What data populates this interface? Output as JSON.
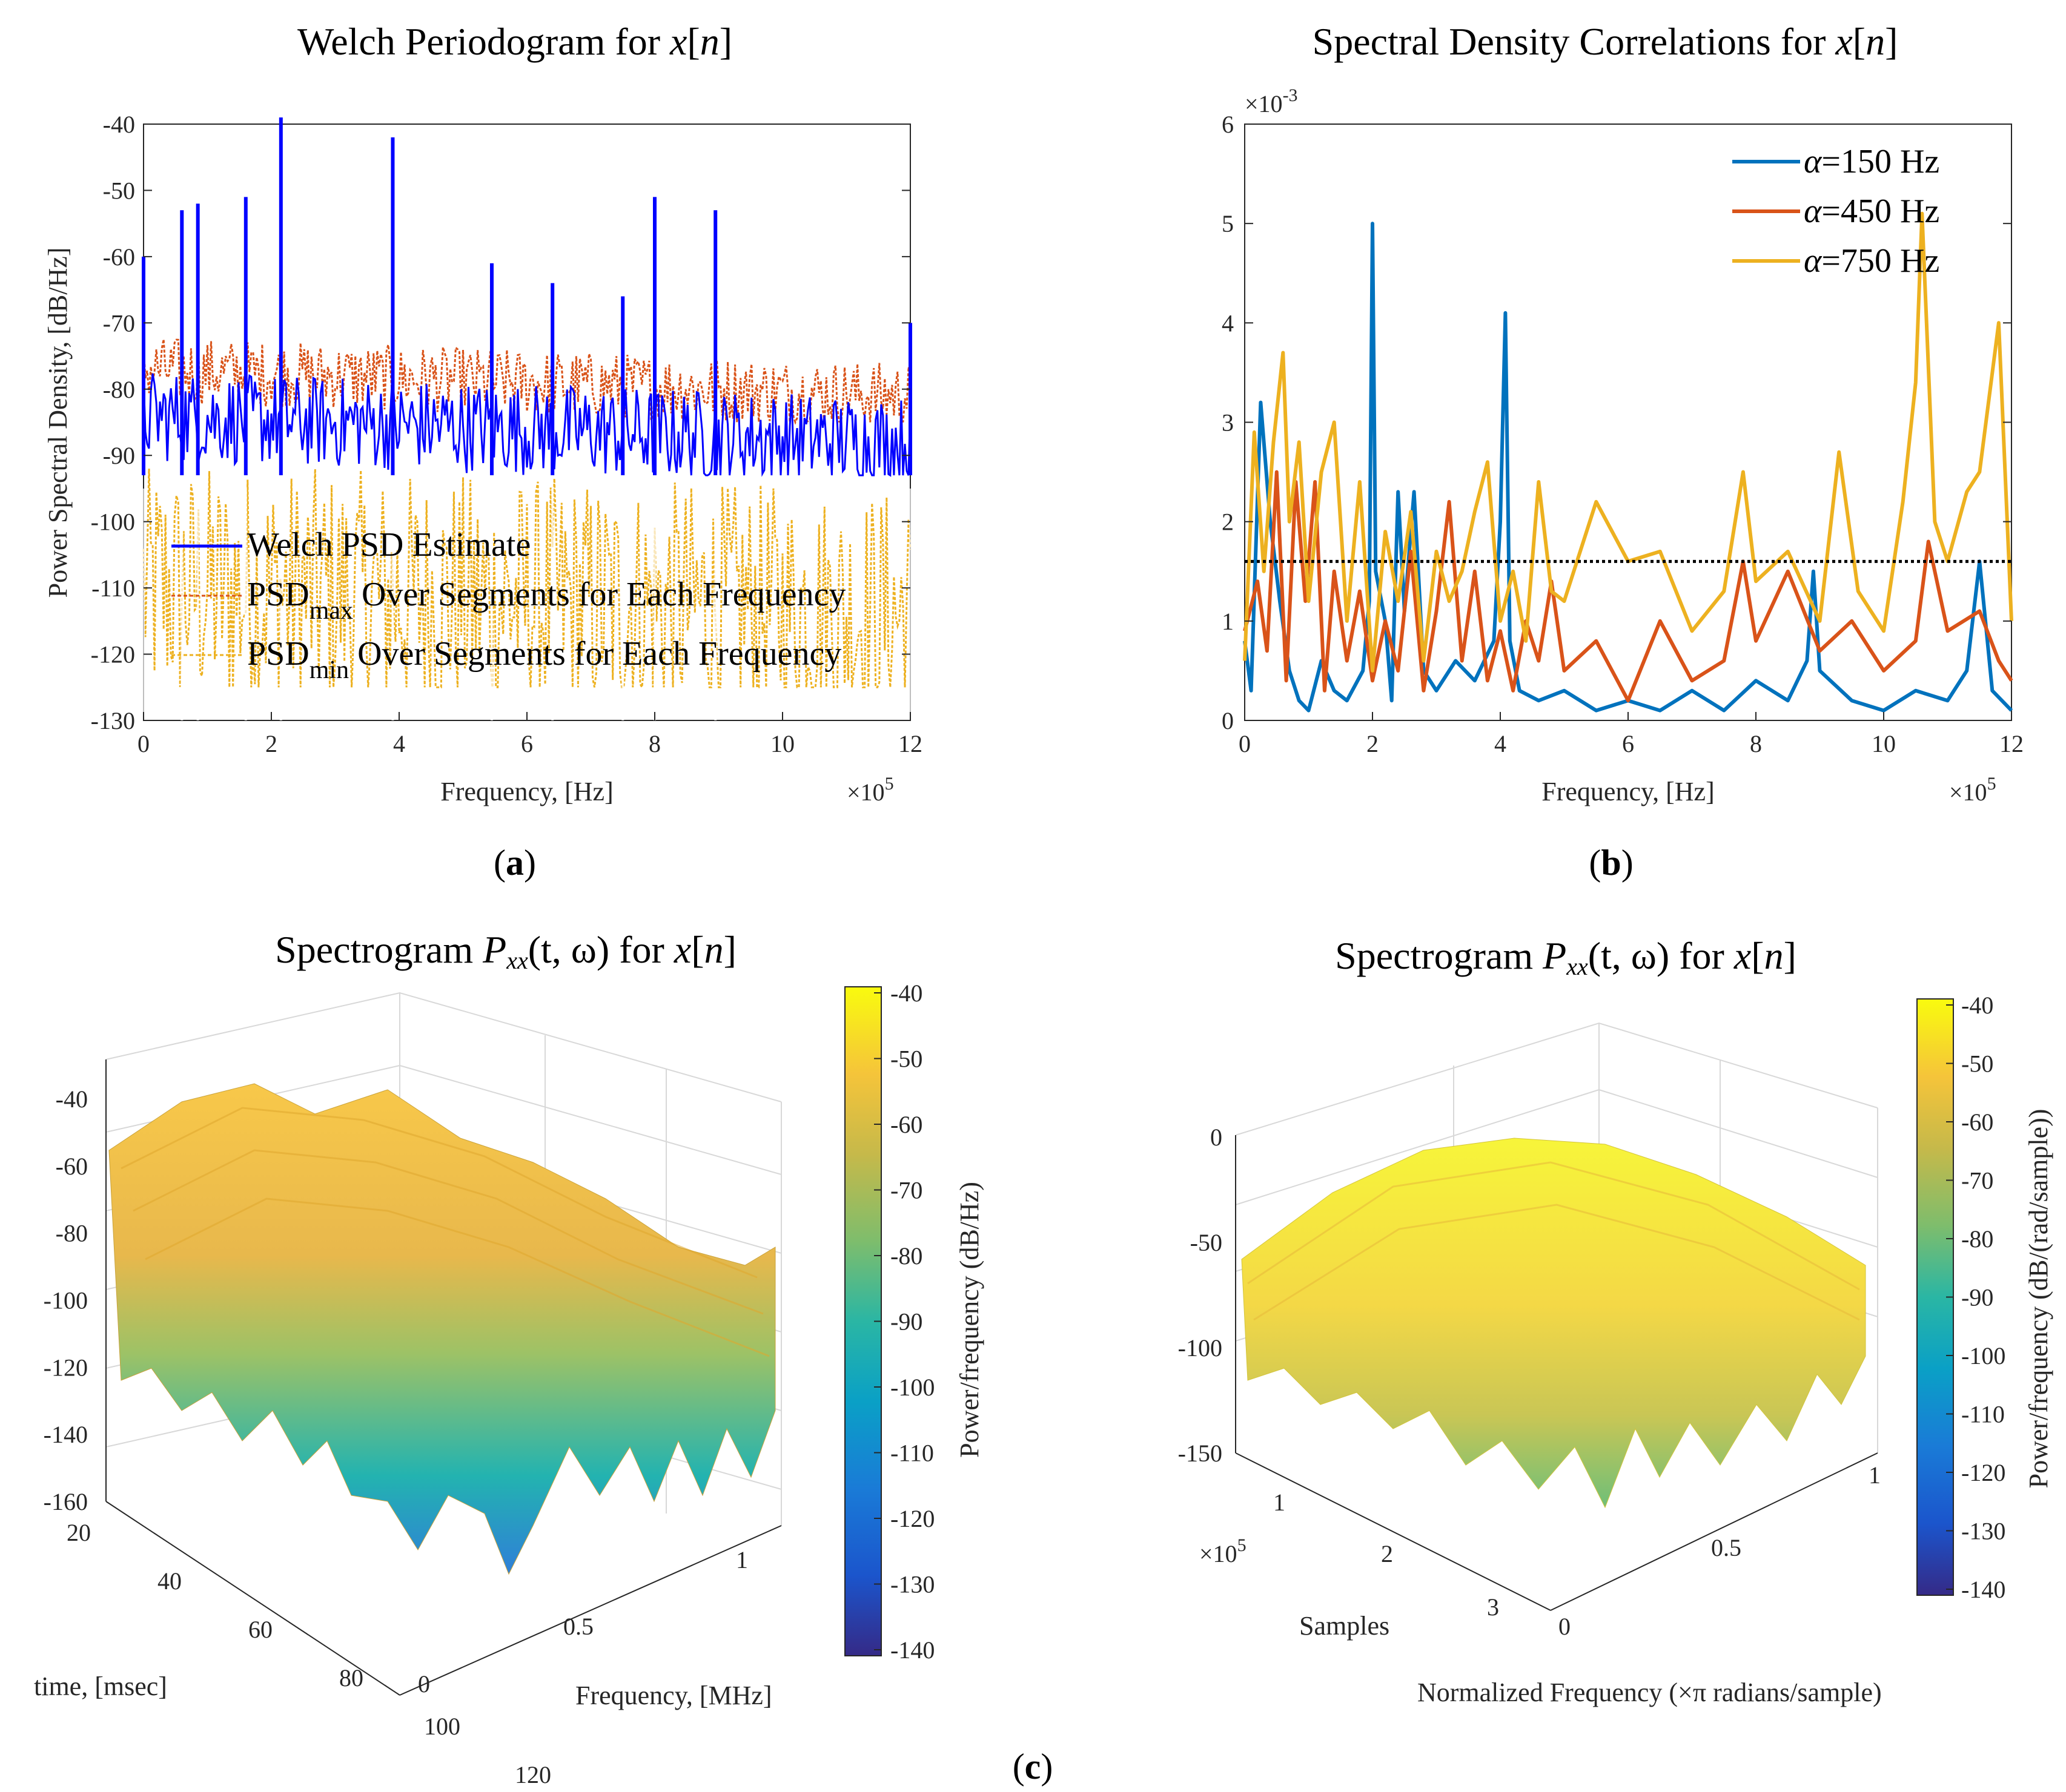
{
  "panels": {
    "a": {
      "title_main": "Welch Periodogram for ",
      "title_var": "x",
      "title_open": "[",
      "title_n": "n",
      "title_close": "]",
      "caption": "a",
      "xlabel": "Frequency, [Hz]",
      "ylabel": "Power Spectral Density, [dB/Hz]",
      "x_multiplier_base": "×10",
      "x_multiplier_exp": "5",
      "legend": [
        {
          "label": "Welch PSD Estimate",
          "sub": "",
          "rest": "",
          "color": "#0000ff"
        },
        {
          "label": "PSD",
          "sub": "max",
          "rest": " Over Segments for Each Frequency",
          "color": "#d95319"
        },
        {
          "label": "PSD",
          "sub": "min",
          "rest": " Over Segments for Each Frequency",
          "color": "#edb120"
        }
      ]
    },
    "b": {
      "title_main": "Spectral Density Correlations for ",
      "title_var": "x",
      "title_open": "[",
      "title_n": "n",
      "title_close": "]",
      "caption": "b",
      "xlabel": "Frequency, [Hz]",
      "x_multiplier_base": "×10",
      "x_multiplier_exp": "5",
      "y_multiplier_base": "×10",
      "y_multiplier_exp": "-3",
      "legend": [
        {
          "sym": "α",
          "label": "=150 Hz",
          "color": "#0072bd"
        },
        {
          "sym": "α",
          "label": "=450 Hz",
          "color": "#d95319"
        },
        {
          "sym": "α",
          "label": "=750 Hz",
          "color": "#edb120"
        }
      ],
      "threshold": 1.6
    },
    "c_left": {
      "title_pre": "Spectrogram ",
      "title_P": "P",
      "title_sub": "xx",
      "title_args": "(t, ω)",
      "title_for": " for ",
      "title_var": "x",
      "title_open": "[",
      "title_n": "n",
      "title_close": "]",
      "xlabel": "time, [msec]",
      "ylabel": "Frequency, [MHz]",
      "colorbar_label": "Power/frequency (dB/Hz)"
    },
    "c_right": {
      "title_pre": "Spectrogram ",
      "title_P": "P",
      "title_sub": "xx",
      "title_args": "(t, ω)",
      "title_for": " for ",
      "title_var": "x",
      "title_open": "[",
      "title_n": "n",
      "title_close": "]",
      "xlabel": "Samples",
      "x_multiplier_base": "×10",
      "x_multiplier_exp": "5",
      "ylabel": "Normalized Frequency (×π radians/sample)",
      "colorbar_label": "Power/frequency (dB/(rad/sample))"
    },
    "c_caption": "c"
  },
  "chart_data": [
    {
      "type": "line",
      "title": "Welch Periodogram for x[n]",
      "xlabel": "Frequency, [Hz]",
      "ylabel": "Power Spectral Density, [dB/Hz]",
      "xlim": [
        0,
        1200000
      ],
      "ylim": [
        -130,
        -40
      ],
      "xticks": [
        0,
        2,
        4,
        6,
        8,
        10,
        12
      ],
      "yticks": [
        -40,
        -50,
        -60,
        -70,
        -80,
        -90,
        -100,
        -110,
        -120,
        -130
      ],
      "series": [
        {
          "name": "Welch PSD Estimate",
          "baseline": -84,
          "noise_band": [
            -93,
            -76
          ]
        },
        {
          "name": "PSDmax Over Segments for Each Frequency",
          "baseline": -77,
          "noise_band": [
            -85,
            -72
          ]
        },
        {
          "name": "PSDmin Over Segments for Each Frequency",
          "baseline": -110,
          "noise_band": [
            -125,
            -92
          ]
        }
      ],
      "peaks": [
        {
          "x": 0,
          "y": -62
        },
        {
          "x": 60000,
          "y": -55
        },
        {
          "x": 85000,
          "y": -54
        },
        {
          "x": 160000,
          "y": -53
        },
        {
          "x": 215000,
          "y": -41
        },
        {
          "x": 390000,
          "y": -44
        },
        {
          "x": 545000,
          "y": -63
        },
        {
          "x": 640000,
          "y": -66
        },
        {
          "x": 750000,
          "y": -68
        },
        {
          "x": 800000,
          "y": -53
        },
        {
          "x": 895000,
          "y": -55
        },
        {
          "x": 1200000,
          "y": -72
        }
      ]
    },
    {
      "type": "line",
      "title": "Spectral Density Correlations for x[n]",
      "xlabel": "Frequency, [Hz]",
      "xlim": [
        0,
        1200000
      ],
      "ylim": [
        0,
        0.006
      ],
      "xticks": [
        0,
        2,
        4,
        6,
        8,
        10,
        12
      ],
      "yticks": [
        0,
        1,
        2,
        3,
        4,
        5,
        6
      ],
      "y_scale": 0.001,
      "threshold": 1.6,
      "x_unit_scale": 100000,
      "series": [
        {
          "name": "α=150 Hz",
          "x": [
            0,
            0.1,
            0.25,
            0.4,
            0.55,
            0.7,
            0.85,
            1.0,
            1.2,
            1.4,
            1.6,
            1.85,
            1.95,
            2.0,
            2.05,
            2.2,
            2.3,
            2.4,
            2.5,
            2.65,
            2.8,
            3.0,
            3.3,
            3.6,
            3.9,
            4.0,
            4.08,
            4.15,
            4.3,
            4.6,
            5.0,
            5.5,
            6.0,
            6.5,
            7.0,
            7.5,
            8.0,
            8.5,
            8.8,
            8.9,
            9.0,
            9.5,
            10.0,
            10.5,
            11.0,
            11.3,
            11.5,
            11.7,
            12.0
          ],
          "y": [
            0.8,
            0.3,
            3.2,
            2.0,
            1.2,
            0.5,
            0.2,
            0.1,
            0.6,
            0.3,
            0.2,
            0.5,
            1.2,
            5.0,
            1.5,
            1.0,
            0.2,
            2.3,
            1.1,
            2.3,
            0.5,
            0.3,
            0.6,
            0.4,
            0.8,
            2.0,
            4.1,
            0.8,
            0.3,
            0.2,
            0.3,
            0.1,
            0.2,
            0.1,
            0.3,
            0.1,
            0.4,
            0.2,
            0.6,
            1.5,
            0.5,
            0.2,
            0.1,
            0.3,
            0.2,
            0.5,
            1.6,
            0.3,
            0.1
          ]
        },
        {
          "name": "α=450 Hz",
          "x": [
            0,
            0.2,
            0.35,
            0.5,
            0.65,
            0.8,
            0.95,
            1.1,
            1.25,
            1.4,
            1.6,
            1.8,
            2.0,
            2.2,
            2.4,
            2.6,
            2.8,
            3.0,
            3.2,
            3.4,
            3.6,
            3.8,
            4.0,
            4.2,
            4.4,
            4.6,
            4.8,
            5.0,
            5.5,
            6.0,
            6.5,
            7.0,
            7.5,
            7.8,
            8.0,
            8.5,
            9.0,
            9.5,
            10.0,
            10.5,
            10.7,
            11.0,
            11.5,
            11.8,
            12.0
          ],
          "y": [
            0.9,
            1.4,
            0.7,
            2.5,
            0.4,
            2.4,
            1.2,
            2.4,
            0.3,
            1.5,
            0.6,
            1.3,
            0.4,
            1.0,
            0.5,
            1.7,
            0.3,
            1.1,
            2.2,
            0.6,
            1.5,
            0.4,
            0.9,
            0.3,
            1.0,
            0.6,
            1.4,
            0.5,
            0.8,
            0.2,
            1.0,
            0.4,
            0.6,
            1.6,
            0.8,
            1.5,
            0.7,
            1.0,
            0.5,
            0.8,
            1.8,
            0.9,
            1.1,
            0.6,
            0.4
          ]
        },
        {
          "name": "α=750 Hz",
          "x": [
            0,
            0.15,
            0.3,
            0.45,
            0.6,
            0.7,
            0.85,
            1.0,
            1.2,
            1.4,
            1.6,
            1.8,
            2.0,
            2.2,
            2.4,
            2.6,
            2.8,
            3.0,
            3.2,
            3.4,
            3.6,
            3.8,
            4.0,
            4.2,
            4.4,
            4.6,
            4.8,
            5.0,
            5.5,
            6.0,
            6.5,
            7.0,
            7.5,
            7.8,
            8.0,
            8.5,
            9.0,
            9.3,
            9.6,
            10.0,
            10.3,
            10.5,
            10.6,
            10.8,
            11.0,
            11.3,
            11.5,
            11.8,
            12.0
          ],
          "y": [
            0.6,
            2.9,
            1.5,
            2.8,
            3.7,
            2.0,
            2.8,
            1.2,
            2.5,
            3.0,
            1.0,
            2.4,
            0.5,
            1.9,
            1.2,
            2.1,
            0.6,
            1.7,
            1.2,
            1.5,
            2.1,
            2.6,
            1.0,
            1.5,
            0.8,
            2.4,
            1.3,
            1.2,
            2.2,
            1.6,
            1.7,
            0.9,
            1.3,
            2.5,
            1.4,
            1.7,
            1.0,
            2.7,
            1.3,
            0.9,
            2.2,
            3.4,
            5.1,
            2.0,
            1.6,
            2.3,
            2.5,
            4.0,
            1.0
          ]
        }
      ]
    },
    {
      "type": "surface",
      "title": "Spectrogram Pxx(t, ω) for x[n]",
      "xlabel": "time, [msec]",
      "ylabel": "Frequency, [MHz]",
      "xticks": [
        20,
        40,
        60,
        80,
        100,
        120
      ],
      "yticks": [
        0,
        0.5,
        1
      ],
      "zticks": [
        -40,
        -60,
        -80,
        -100,
        -120,
        -140,
        -160
      ],
      "colorbar": {
        "label": "Power/frequency (dB/Hz)",
        "ticks": [
          -40,
          -50,
          -60,
          -70,
          -80,
          -90,
          -100,
          -110,
          -120,
          -130,
          -140
        ]
      }
    },
    {
      "type": "surface",
      "title": "Spectrogram Pxx(t, ω) for x[n]",
      "xlabel": "Samples",
      "ylabel": "Normalized Frequency (×π radians/sample)",
      "xticks": [
        1,
        2,
        3
      ],
      "yticks": [
        0,
        0.5,
        1
      ],
      "zticks": [
        0,
        -50,
        -100,
        -150
      ],
      "colorbar": {
        "label": "Power/frequency (dB/(rad/sample))",
        "ticks": [
          -40,
          -50,
          -60,
          -70,
          -80,
          -90,
          -100,
          -110,
          -120,
          -130,
          -140
        ]
      }
    }
  ]
}
